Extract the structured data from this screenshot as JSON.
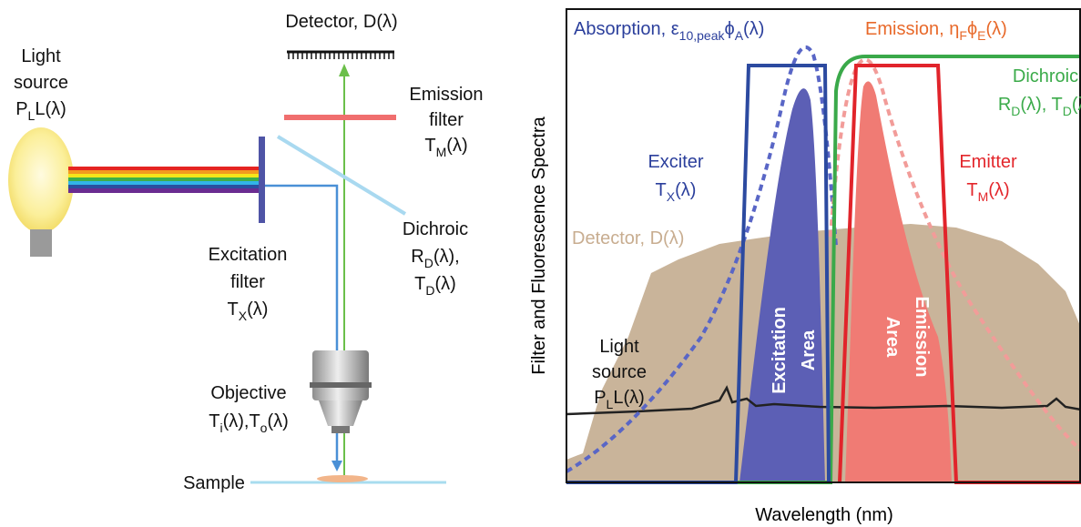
{
  "schematic": {
    "light_source": [
      [
        "Light"
      ],
      [
        "source"
      ],
      [
        "P",
        "L",
        "L(λ)"
      ]
    ],
    "detector": [
      [
        "Detector, D(λ)"
      ]
    ],
    "emission_filter": [
      [
        "Emission"
      ],
      [
        "filter"
      ],
      [
        "T",
        "M",
        "(λ)"
      ]
    ],
    "excitation_filter": [
      [
        "Excitation"
      ],
      [
        "filter"
      ],
      [
        "T",
        "X",
        "(λ)"
      ]
    ],
    "dichroic": [
      [
        "Dichroic"
      ],
      [
        "R",
        "D",
        "(λ),"
      ],
      [
        "T",
        "D",
        "(λ)"
      ]
    ],
    "objective": [
      [
        "Objective"
      ],
      [
        "T",
        "i",
        "(λ),T",
        "o",
        "(λ)"
      ]
    ],
    "sample": [
      [
        "Sample"
      ]
    ]
  },
  "spectra": {
    "y_axis_label": "Filter and Fluorescence Spectra",
    "x_axis_label": "Wavelength (nm)",
    "absorption": [
      [
        "Absorption, ε",
        "10,peak",
        "ϕ",
        "A",
        "(λ)"
      ]
    ],
    "emission": [
      [
        "Emission, η",
        "F",
        "ϕ",
        "E",
        "(λ)"
      ]
    ],
    "dichroic": [
      [
        "Dichroic"
      ],
      [
        "R",
        "D",
        "(λ), T",
        "D",
        "(λ)"
      ]
    ],
    "exciter": [
      [
        "Exciter"
      ],
      [
        "T",
        "X",
        "(λ)"
      ]
    ],
    "emitter": [
      [
        "Emitter"
      ],
      [
        "T",
        "M",
        "(λ)"
      ]
    ],
    "detector": [
      [
        "Detector, D(λ)"
      ]
    ],
    "light_source": [
      [
        "Light"
      ],
      [
        "source"
      ],
      [
        "P",
        "L",
        "L(λ)"
      ]
    ],
    "excitation_area": [
      [
        "Excitation"
      ],
      [
        "Area"
      ]
    ],
    "emission_area": [
      [
        "Emission"
      ],
      [
        "Area"
      ]
    ]
  }
}
